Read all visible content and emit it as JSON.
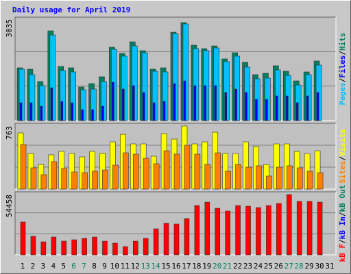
{
  "chart_data": [
    {
      "type": "bar",
      "title": "Daily usage for April 2019",
      "legend_separator": "/",
      "ylim": [
        0,
        3035
      ],
      "yticks": [
        3035
      ],
      "series": [
        {
          "name": "Pages",
          "color": "#00c0ff",
          "values": [
            1538,
            1374,
            1046,
            2563,
            1497,
            1456,
            923,
            943,
            1169,
            2133,
            1928,
            2235,
            2030,
            1476,
            1456,
            2604,
            2892,
            2153,
            2092,
            2174,
            1764,
            1928,
            1600,
            1251,
            1271,
            1517,
            1353,
            1066,
            1374,
            1661,
            null
          ]
        },
        {
          "name": "Files",
          "color": "#0000ff",
          "values": [
            533,
            533,
            431,
            984,
            574,
            533,
            328,
            328,
            431,
            1148,
            943,
            1046,
            841,
            533,
            574,
            1107,
            1189,
            1046,
            1046,
            1046,
            841,
            943,
            841,
            636,
            636,
            738,
            738,
            533,
            738,
            841,
            null
          ]
        },
        {
          "name": "Hits",
          "color": "#008060",
          "values": [
            1579,
            1538,
            1169,
            2686,
            1620,
            1579,
            1005,
            1107,
            1312,
            2194,
            2010,
            2358,
            2092,
            1538,
            1579,
            2645,
            2933,
            2256,
            2153,
            2235,
            1846,
            2030,
            1743,
            1374,
            1415,
            1641,
            1477,
            1189,
            1456,
            1784,
            null
          ]
        }
      ]
    },
    {
      "type": "bar",
      "legend_separator": "/",
      "ylim": [
        0,
        763
      ],
      "yticks": [
        763
      ],
      "series": [
        {
          "name": "Sites",
          "color": "#ff8000",
          "values": [
            539,
            257,
            174,
            332,
            249,
            207,
            199,
            216,
            232,
            290,
            439,
            423,
            373,
            307,
            464,
            423,
            531,
            423,
            298,
            439,
            216,
            298,
            265,
            282,
            158,
            265,
            282,
            257,
            216,
            199,
            null
          ]
        },
        {
          "name": "Visits",
          "color": "#ffff00",
          "values": [
            680,
            431,
            298,
            415,
            456,
            431,
            390,
            456,
            431,
            572,
            663,
            547,
            547,
            398,
            672,
            605,
            763,
            547,
            572,
            688,
            431,
            431,
            572,
            514,
            298,
            547,
            547,
            456,
            431,
            464,
            null
          ]
        }
      ]
    },
    {
      "type": "bar",
      "legend_separator": "/",
      "ylim": [
        0,
        54458
      ],
      "yticks": [
        54458
      ],
      "categories": [
        "1",
        "2",
        "3",
        "4",
        "5",
        "6",
        "7",
        "8",
        "9",
        "10",
        "11",
        "12",
        "13",
        "14",
        "15",
        "16",
        "17",
        "18",
        "19",
        "20",
        "21",
        "22",
        "23",
        "24",
        "25",
        "26",
        "27",
        "28",
        "29",
        "30",
        "31"
      ],
      "category_colors": [
        "#000000",
        "#000000",
        "#000000",
        "#000000",
        "#000000",
        "#008060",
        "#008060",
        "#000000",
        "#000000",
        "#000000",
        "#000000",
        "#000000",
        "#008060",
        "#008060",
        "#000000",
        "#000000",
        "#000000",
        "#000000",
        "#000000",
        "#008060",
        "#008060",
        "#000000",
        "#000000",
        "#000000",
        "#000000",
        "#000000",
        "#008060",
        "#008060",
        "#000000",
        "#000000",
        "#000000"
      ],
      "series": [
        {
          "name": "kB F",
          "color": "#ff0000",
          "values": [
            29702,
            16708,
            11757,
            16089,
            12376,
            13614,
            14851,
            16089,
            12376,
            10520,
            7426,
            12376,
            14851,
            23514,
            28465,
            27846,
            32796,
            44554,
            47648,
            42078,
            39603,
            44554,
            43935,
            42697,
            44554,
            46410,
            54458,
            48266,
            48266,
            47648,
            null
          ]
        },
        {
          "name": "kB In",
          "color": "#0000ff"
        },
        {
          "name": "kB Out",
          "color": "#008060"
        }
      ]
    }
  ]
}
